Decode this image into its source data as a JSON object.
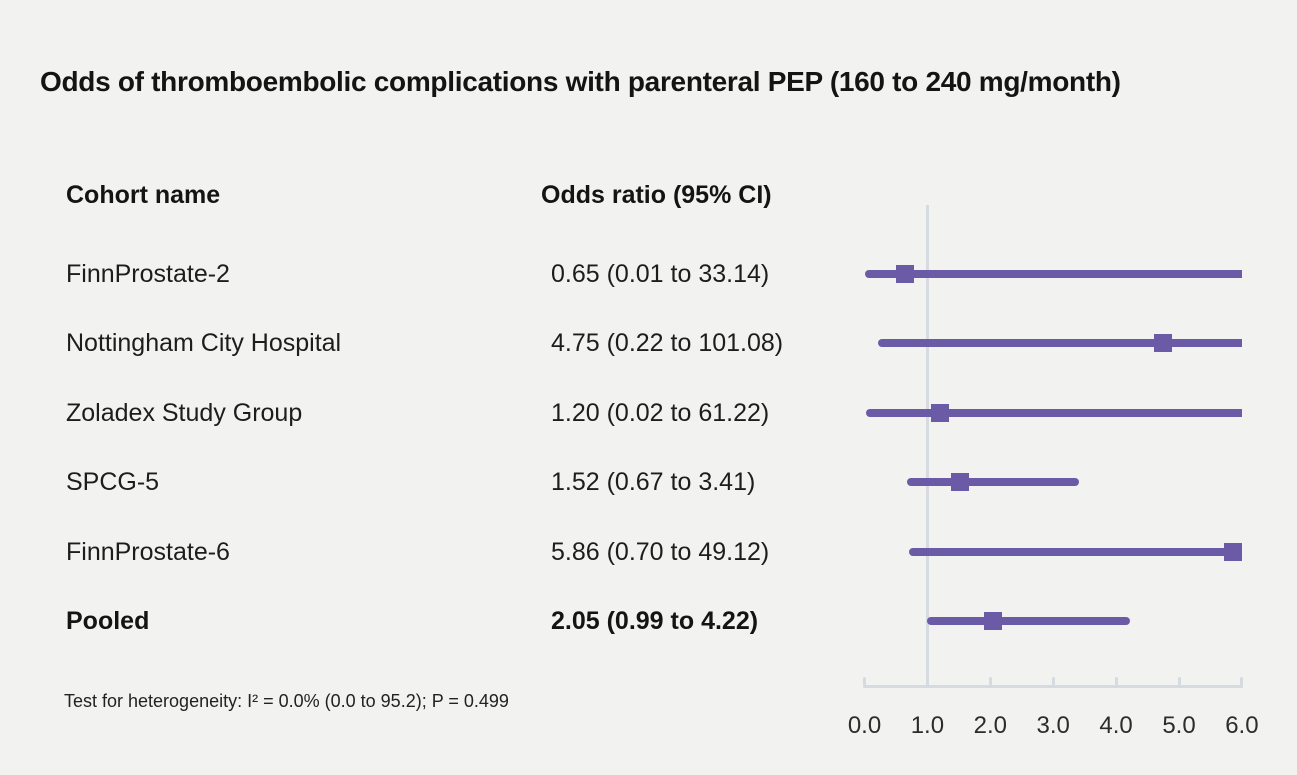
{
  "chart_data": {
    "type": "scatter",
    "variant": "forest-plot",
    "title": "Odds of thromboembolic complications with parenteral PEP (160 to 240 mg/month)",
    "col_headers": [
      "Cohort name",
      "Odds ratio (95% CI)"
    ],
    "studies": [
      {
        "name": "FinnProstate-2",
        "label": "0.65 (0.01 to 33.14)",
        "or": 0.65,
        "ci_low": 0.01,
        "ci_high": 33.14,
        "bold": false
      },
      {
        "name": "Nottingham City Hospital",
        "label": "4.75 (0.22 to 101.08)",
        "or": 4.75,
        "ci_low": 0.22,
        "ci_high": 101.08,
        "bold": false
      },
      {
        "name": "Zoladex Study Group",
        "label": "1.20 (0.02 to 61.22)",
        "or": 1.2,
        "ci_low": 0.02,
        "ci_high": 61.22,
        "bold": false
      },
      {
        "name": "SPCG-5",
        "label": "1.52 (0.67 to 3.41)",
        "or": 1.52,
        "ci_low": 0.67,
        "ci_high": 3.41,
        "bold": false
      },
      {
        "name": "FinnProstate-6",
        "label": "5.86 (0.70 to 49.12)",
        "or": 5.86,
        "ci_low": 0.7,
        "ci_high": 49.12,
        "bold": false
      },
      {
        "name": "Pooled",
        "label": "2.05 (0.99 to 4.22)",
        "or": 2.05,
        "ci_low": 0.99,
        "ci_high": 4.22,
        "bold": true
      }
    ],
    "xticks": [
      "0.0",
      "1.0",
      "2.0",
      "3.0",
      "4.0",
      "5.0",
      "6.0"
    ],
    "xtick_values": [
      0,
      1,
      2,
      3,
      4,
      5,
      6
    ],
    "xlim": [
      0,
      6
    ],
    "reference_line": 1.0,
    "legend": "none",
    "grid": "off",
    "footnote": "Test for heterogeneity: I² = 0.0% (0.0 to 95.2); P = 0.499",
    "colors": {
      "marker": "#6b5aa5",
      "ci_line": "#6b5aa5",
      "axis": "#d6dae1",
      "reference_line": "#d6dae1",
      "background": "#f2f2f1",
      "text": "#1d1d1b"
    }
  }
}
